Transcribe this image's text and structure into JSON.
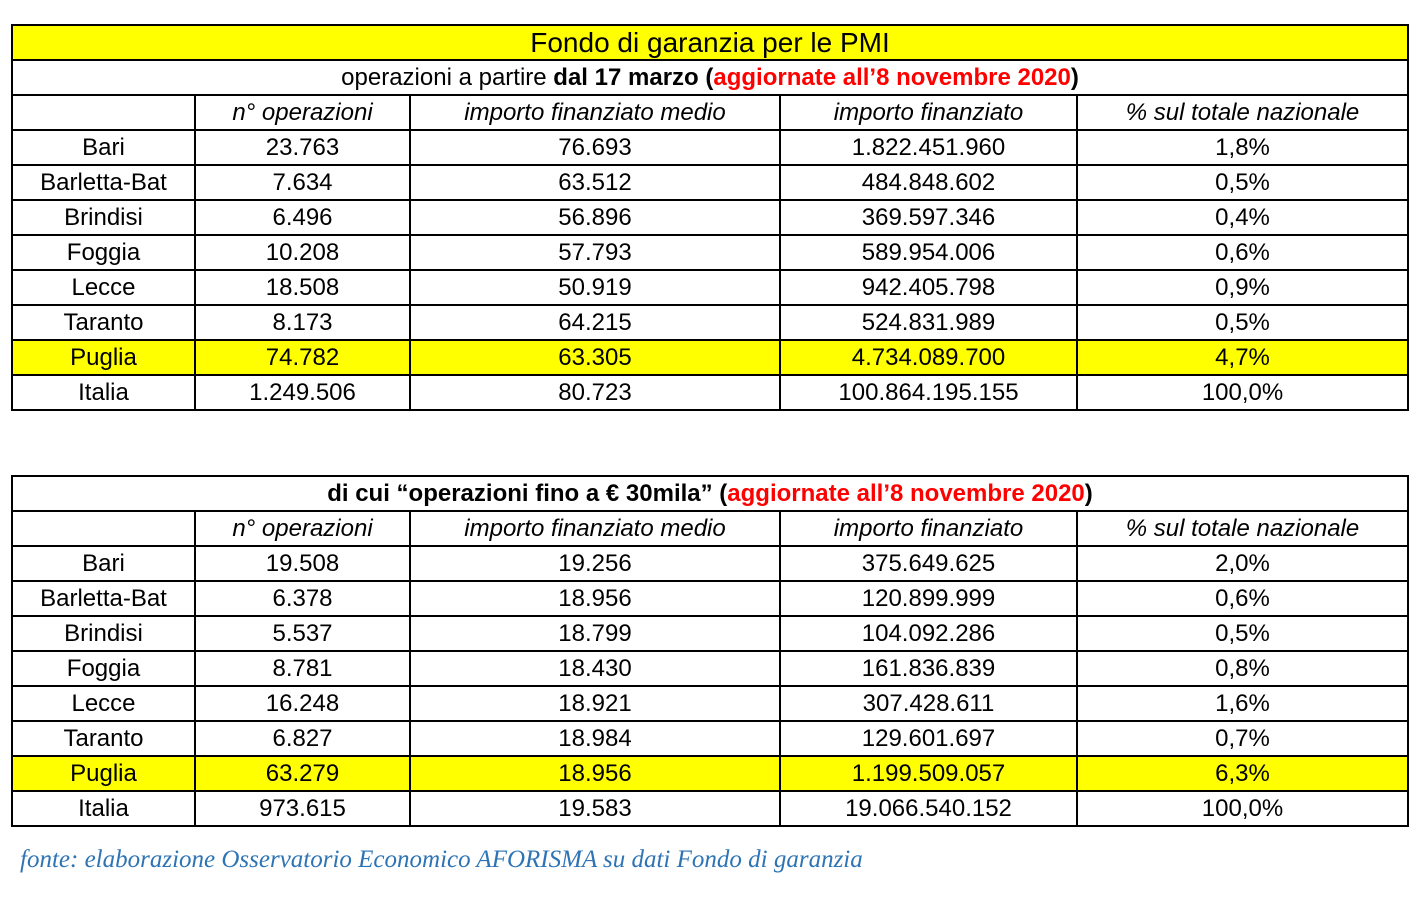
{
  "table1": {
    "title": "Fondo di garanzia per le PMI",
    "subtitle_pre": "operazioni a partire ",
    "subtitle_bold": "dal 17 marzo",
    "subtitle_open": " (",
    "subtitle_red": "aggiornate all’8 novembre 2020",
    "subtitle_close": ")",
    "headers": [
      "",
      "n° operazioni",
      "importo finanziato medio",
      "importo finanziato",
      "% sul totale nazionale"
    ],
    "rows": [
      [
        "Bari",
        "23.763",
        "76.693",
        "1.822.451.960",
        "1,8%"
      ],
      [
        "Barletta-Bat",
        "7.634",
        "63.512",
        "484.848.602",
        "0,5%"
      ],
      [
        "Brindisi",
        "6.496",
        "56.896",
        "369.597.346",
        "0,4%"
      ],
      [
        "Foggia",
        "10.208",
        "57.793",
        "589.954.006",
        "0,6%"
      ],
      [
        "Lecce",
        "18.508",
        "50.919",
        "942.405.798",
        "0,9%"
      ],
      [
        "Taranto",
        "8.173",
        "64.215",
        "524.831.989",
        "0,5%"
      ],
      [
        "Puglia",
        "74.782",
        "63.305",
        "4.734.089.700",
        "4,7%"
      ],
      [
        "Italia",
        "1.249.506",
        "80.723",
        "100.864.195.155",
        "100,0%"
      ]
    ]
  },
  "table2": {
    "subtitle_bold": "di cui “operazioni fino a € 30mila”",
    "subtitle_open": " (",
    "subtitle_red": "aggiornate all’8 novembre 2020",
    "subtitle_close": ")",
    "headers": [
      "",
      "n° operazioni",
      "importo finanziato medio",
      "importo finanziato",
      "% sul totale nazionale"
    ],
    "rows": [
      [
        "Bari",
        "19.508",
        "19.256",
        "375.649.625",
        "2,0%"
      ],
      [
        "Barletta-Bat",
        "6.378",
        "18.956",
        "120.899.999",
        "0,6%"
      ],
      [
        "Brindisi",
        "5.537",
        "18.799",
        "104.092.286",
        "0,5%"
      ],
      [
        "Foggia",
        "8.781",
        "18.430",
        "161.836.839",
        "0,8%"
      ],
      [
        "Lecce",
        "16.248",
        "18.921",
        "307.428.611",
        "1,6%"
      ],
      [
        "Taranto",
        "6.827",
        "18.984",
        "129.601.697",
        "0,7%"
      ],
      [
        "Puglia",
        "63.279",
        "18.956",
        "1.199.509.057",
        "6,3%"
      ],
      [
        "Italia",
        "973.615",
        "19.583",
        "19.066.540.152",
        "100,0%"
      ]
    ]
  },
  "source": "fonte: elaborazione Osservatorio Economico AFORISMA su dati Fondo di garanzia",
  "colors": {
    "highlight": "#ffff00",
    "accent_red": "#ff0000",
    "source_blue": "#2e74b5"
  }
}
